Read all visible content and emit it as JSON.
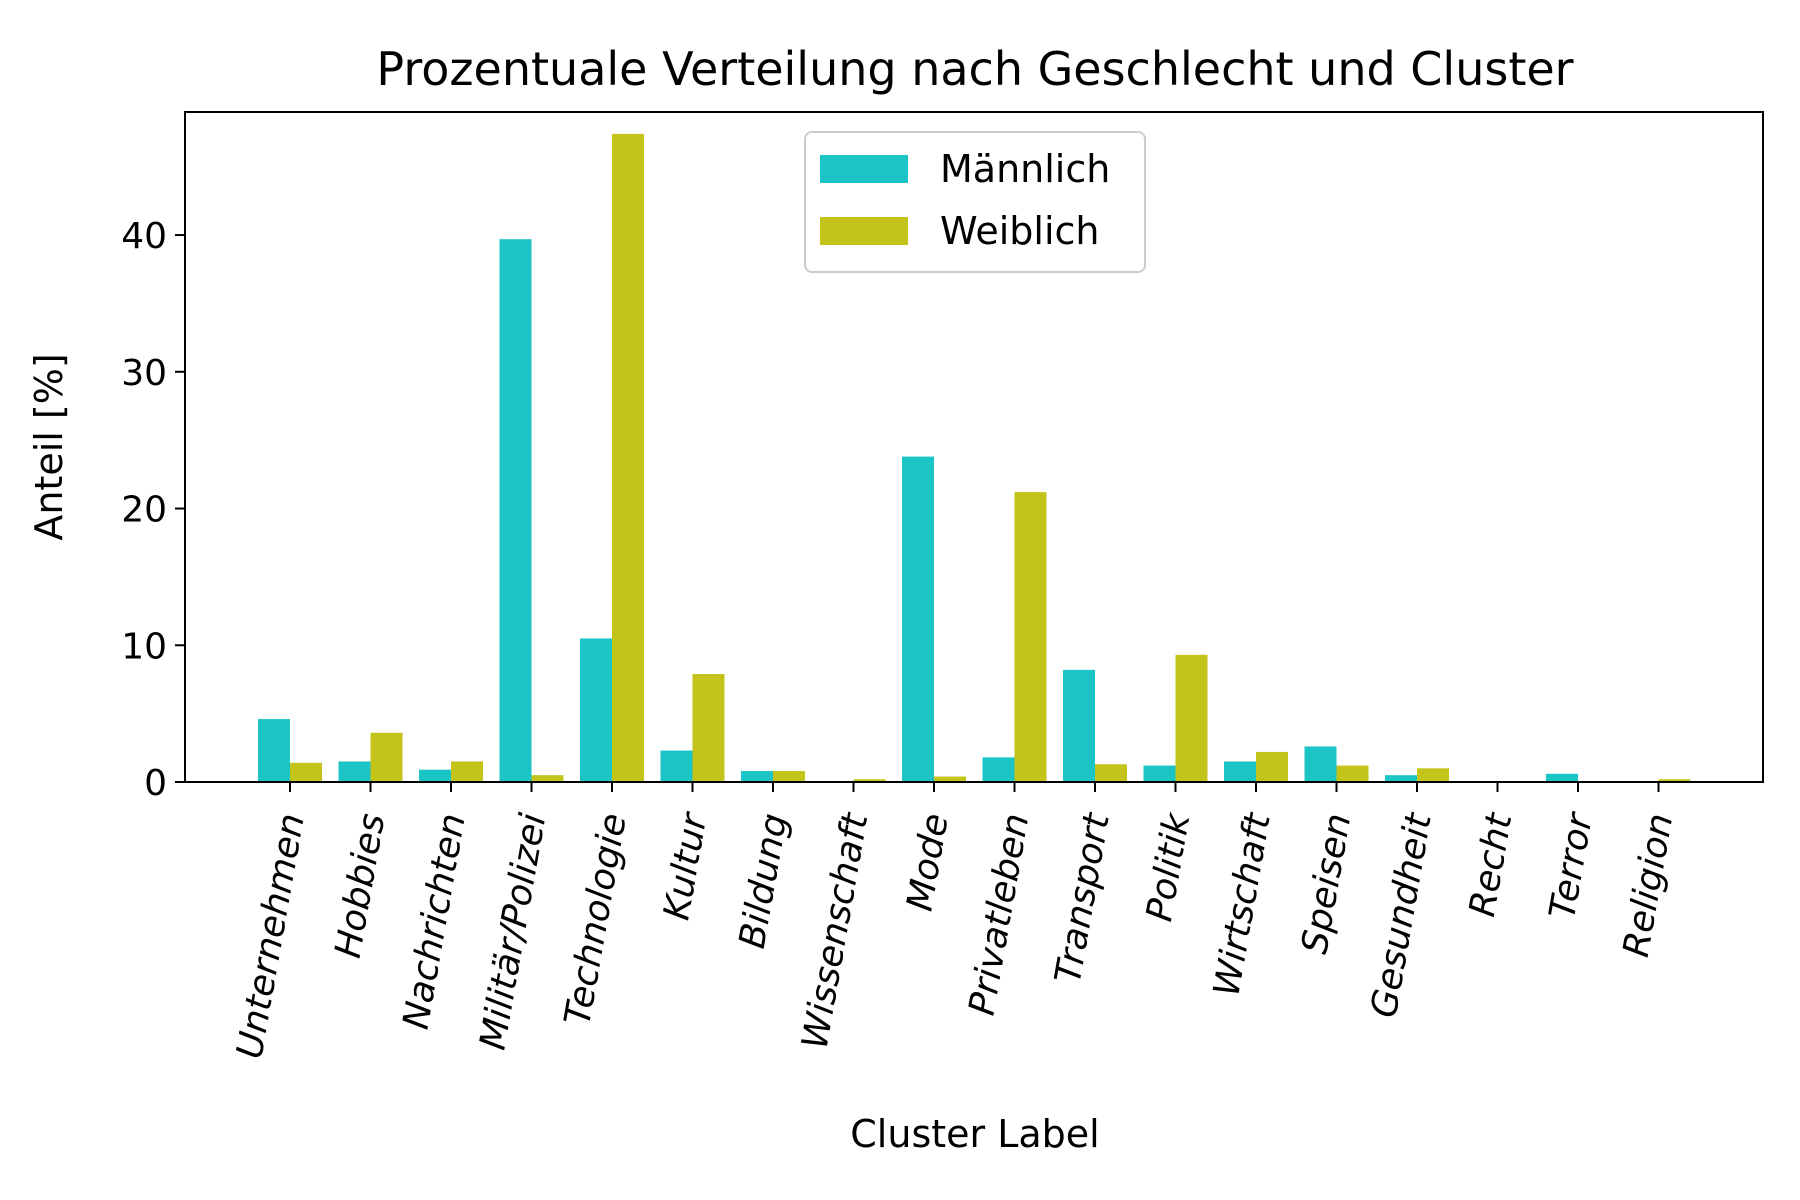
{
  "chart_data": {
    "type": "bar",
    "title": "Prozentuale Verteilung nach Geschlecht und Cluster",
    "xlabel": "Cluster Label",
    "ylabel": "Anteil [%]",
    "ylim": [
      0,
      49
    ],
    "yticks": [
      0,
      10,
      20,
      30,
      40
    ],
    "grid": false,
    "legend_position": "top-center",
    "categories": [
      "Unternehmen",
      "Hobbies",
      "Nachrichten",
      "Militär/Polizei",
      "Technologie",
      "Kultur",
      "Bildung",
      "Wissenschaft",
      "Mode",
      "Privatleben",
      "Transport",
      "Politik",
      "Wirtschaft",
      "Speisen",
      "Gesundheit",
      "Recht",
      "Terror",
      "Religion"
    ],
    "series": [
      {
        "name": "Männlich",
        "color": "#1cc5c5",
        "values": [
          4.6,
          1.5,
          0.9,
          39.7,
          10.5,
          2.3,
          0.8,
          0.0,
          23.8,
          1.8,
          8.2,
          1.2,
          1.5,
          2.6,
          0.5,
          0.0,
          0.6,
          0.0
        ]
      },
      {
        "name": "Weiblich",
        "color": "#c3c31a",
        "values": [
          1.4,
          3.6,
          1.5,
          0.5,
          47.4,
          7.9,
          0.8,
          0.2,
          0.4,
          21.2,
          1.3,
          9.3,
          2.2,
          1.2,
          1.0,
          0.0,
          0.0,
          0.2
        ]
      }
    ]
  }
}
